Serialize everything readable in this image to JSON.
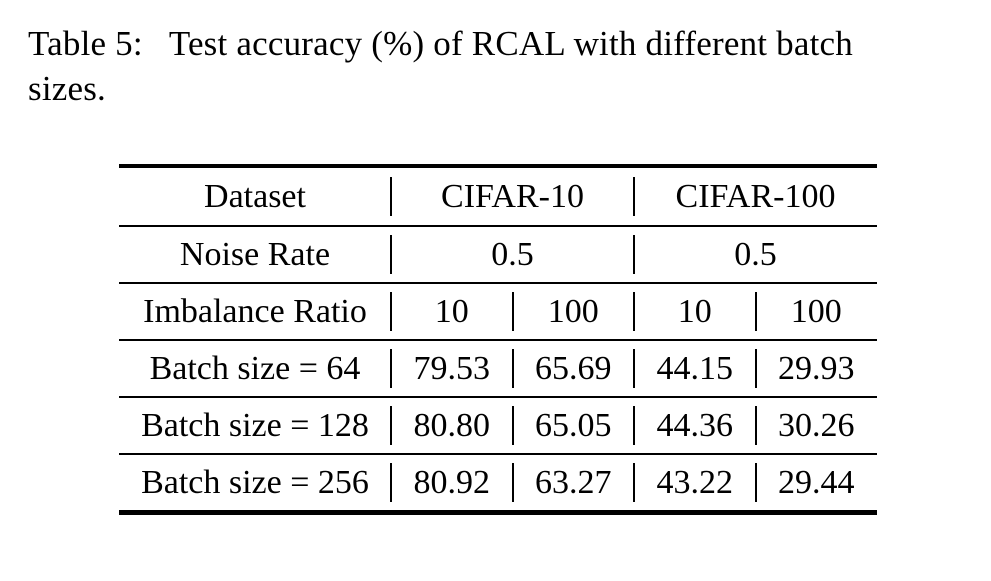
{
  "caption": {
    "label": "Table 5:",
    "line1": "Test accuracy (%) of RCAL with different batch",
    "line2": "sizes."
  },
  "table": {
    "rows": [
      [
        "Dataset",
        "CIFAR-10",
        "CIFAR-100"
      ],
      [
        "Noise Rate",
        "0.5",
        "0.5"
      ],
      [
        "Imbalance Ratio",
        "10",
        "100",
        "10",
        "100"
      ],
      [
        "Batch size = 64",
        "79.53",
        "65.69",
        "44.15",
        "29.93"
      ],
      [
        "Batch size = 128",
        "80.80",
        "65.05",
        "44.36",
        "30.26"
      ],
      [
        "Batch size = 256",
        "80.92",
        "63.27",
        "43.22",
        "29.44"
      ]
    ]
  },
  "colors": {
    "text": "#000000",
    "background": "#ffffff",
    "rule": "#000000"
  }
}
